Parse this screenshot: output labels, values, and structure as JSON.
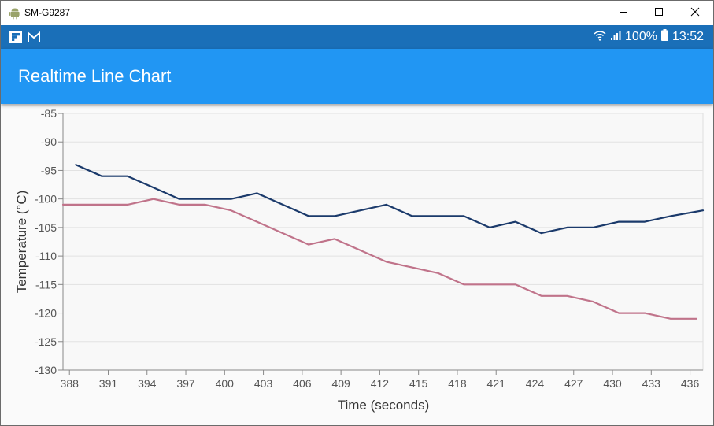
{
  "window": {
    "title": "SM-G9287",
    "icon": "android-icon",
    "controls": [
      "minimize-icon",
      "maximize-icon",
      "close-icon"
    ]
  },
  "status_bar": {
    "left_icons": [
      "flipboard-icon",
      "gmail-icon"
    ],
    "battery_percent": "100%",
    "time": "13:52",
    "right_icons": [
      "wifi-icon",
      "signal-icon",
      "battery-icon"
    ]
  },
  "app_bar": {
    "title": "Realtime Line Chart",
    "color": "#2196f3"
  },
  "chart_data": {
    "type": "line",
    "title": "",
    "xlabel": "Time (seconds)",
    "ylabel": "Temperature (°C)",
    "xlim": [
      387.5,
      437
    ],
    "ylim": [
      -130,
      -85
    ],
    "xticks": [
      388,
      391,
      394,
      397,
      400,
      403,
      406,
      409,
      412,
      415,
      418,
      421,
      424,
      427,
      430,
      433,
      436
    ],
    "yticks": [
      -85,
      -90,
      -95,
      -100,
      -105,
      -110,
      -115,
      -120,
      -125,
      -130
    ],
    "grid": true,
    "legend": "none",
    "series": [
      {
        "color": "#1b3a6b",
        "x": [
          388.5,
          390.5,
          392.5,
          394.5,
          396.5,
          398.5,
          400.5,
          402.5,
          404.5,
          406.5,
          408.5,
          410.5,
          412.5,
          414.5,
          416.5,
          418.5,
          420.5,
          422.5,
          424.5,
          426.5,
          428.5,
          430.5,
          432.5,
          434.5,
          437
        ],
        "y": [
          -94,
          -96,
          -96,
          -98,
          -100,
          -100,
          -100,
          -99,
          -101,
          -103,
          -103,
          -102,
          -101,
          -103,
          -103,
          -103,
          -105,
          -104,
          -106,
          -105,
          -105,
          -104,
          -104,
          -103,
          -102
        ]
      },
      {
        "color": "#c0738a",
        "x": [
          387.5,
          390.5,
          392.5,
          394.5,
          396.5,
          398.5,
          400.5,
          402.5,
          404.5,
          406.5,
          408.5,
          410.5,
          412.5,
          414.5,
          416.5,
          418.5,
          420.5,
          422.5,
          424.5,
          426.5,
          428.5,
          430.5,
          432.5,
          434.5,
          436.5
        ],
        "y": [
          -101,
          -101,
          -101,
          -100,
          -101,
          -101,
          -102,
          -104,
          -106,
          -108,
          -107,
          -109,
          -111,
          -112,
          -113,
          -115,
          -115,
          -115,
          -117,
          -117,
          -118,
          -120,
          -120,
          -121,
          -121
        ]
      }
    ]
  }
}
